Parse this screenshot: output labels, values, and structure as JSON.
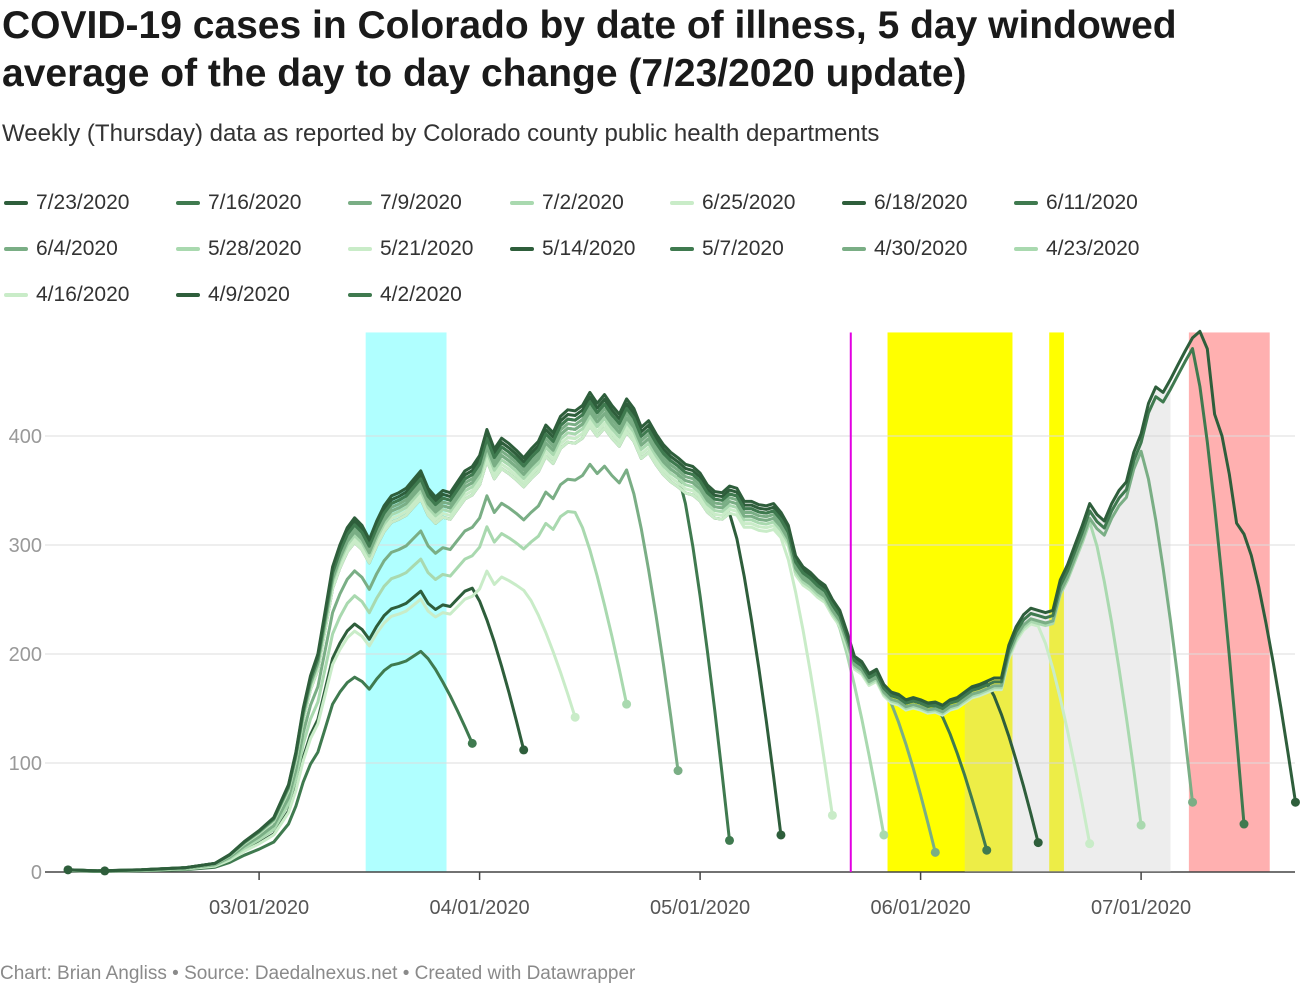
{
  "title": "COVID-19 cases in Colorado by date of illness, 5 day windowed average of the day to day change (7/23/2020 update)",
  "subtitle": "Weekly (Thursday) data as reported by Colorado county public health departments",
  "footer": "Chart: Brian Angliss • Source: Daedalnexus.net • Created with Datawrapper",
  "colors": {
    "palette": [
      "#2e5e3b",
      "#3f7a4f",
      "#7aae85",
      "#a9d9af",
      "#c9ecc8"
    ],
    "gridline": "#dddddd",
    "axis_text": "#999999",
    "cyan_band": "#b0ffff",
    "yellow_band": "#ffff00",
    "red_band": "#ffb0b0",
    "magenta_line": "#e200e2",
    "gray_shade": "#cccccc"
  },
  "chart_data": {
    "type": "line",
    "title": "COVID-19 cases in Colorado by date of illness, 5 day windowed average of the day to day change (7/23/2020 update)",
    "xlabel": "",
    "ylabel": "",
    "x_range": [
      "02/04/2020",
      "07/23/2020"
    ],
    "ylim": [
      0,
      500
    ],
    "yticks": [
      0,
      100,
      200,
      300,
      400
    ],
    "ytick_labels": [
      "0",
      "100",
      "200",
      "300",
      "400"
    ],
    "xticks": [
      {
        "day": 26,
        "label": "03/01/2020"
      },
      {
        "day": 56,
        "label": "04/01/2020"
      },
      {
        "day": 86,
        "label": "05/01/2020"
      },
      {
        "day": 116,
        "label": "06/01/2020"
      },
      {
        "day": 146,
        "label": "07/01/2020"
      }
    ],
    "x_unit_note": "x values are days since 02/04/2020",
    "bands": [
      {
        "name": "cyan",
        "from": 40.5,
        "to": 51.5
      },
      {
        "name": "yellow",
        "from": 111.5,
        "to": 128.5
      },
      {
        "name": "yellow",
        "from": 133.5,
        "to": 135.5
      },
      {
        "name": "red",
        "from": 152.5,
        "to": 163.5
      }
    ],
    "vlines": [
      {
        "name": "magenta",
        "at": 106.5
      }
    ],
    "shaded_gaps": [
      {
        "from": 128,
        "to": 129,
        "upper_series": "7/23/2020"
      },
      {
        "from": 135,
        "to": 136,
        "upper_series": "7/23/2020"
      },
      {
        "from": 142,
        "to": 143,
        "upper_series": "7/23/2020"
      },
      {
        "from": 149,
        "to": 150,
        "upper_series": "7/23/2020"
      }
    ],
    "base_curve": [
      [
        0,
        2
      ],
      [
        4,
        1
      ],
      [
        10,
        2
      ],
      [
        16,
        4
      ],
      [
        20,
        8
      ],
      [
        22,
        16
      ],
      [
        24,
        28
      ],
      [
        26,
        38
      ],
      [
        28,
        50
      ],
      [
        30,
        80
      ],
      [
        31,
        110
      ],
      [
        32,
        150
      ],
      [
        33,
        180
      ],
      [
        34,
        200
      ],
      [
        35,
        240
      ],
      [
        36,
        280
      ],
      [
        37,
        300
      ],
      [
        38,
        316
      ],
      [
        39,
        325
      ],
      [
        40,
        318
      ],
      [
        41,
        305
      ],
      [
        42,
        322
      ],
      [
        43,
        336
      ],
      [
        44,
        345
      ],
      [
        45,
        348
      ],
      [
        46,
        352
      ],
      [
        47,
        360
      ],
      [
        48,
        368
      ],
      [
        49,
        352
      ],
      [
        50,
        344
      ],
      [
        51,
        350
      ],
      [
        52,
        348
      ],
      [
        53,
        358
      ],
      [
        54,
        368
      ],
      [
        55,
        372
      ],
      [
        56,
        382
      ],
      [
        57,
        406
      ],
      [
        58,
        388
      ],
      [
        59,
        398
      ],
      [
        60,
        393
      ],
      [
        61,
        387
      ],
      [
        62,
        380
      ],
      [
        63,
        388
      ],
      [
        64,
        395
      ],
      [
        65,
        410
      ],
      [
        66,
        403
      ],
      [
        67,
        418
      ],
      [
        68,
        424
      ],
      [
        69,
        423
      ],
      [
        70,
        428
      ],
      [
        71,
        440
      ],
      [
        72,
        430
      ],
      [
        73,
        438
      ],
      [
        74,
        428
      ],
      [
        75,
        420
      ],
      [
        76,
        434
      ],
      [
        77,
        425
      ],
      [
        78,
        408
      ],
      [
        79,
        414
      ],
      [
        80,
        402
      ],
      [
        81,
        392
      ],
      [
        82,
        385
      ],
      [
        83,
        380
      ],
      [
        84,
        374
      ],
      [
        85,
        372
      ],
      [
        86,
        366
      ],
      [
        87,
        355
      ],
      [
        88,
        349
      ],
      [
        89,
        348
      ],
      [
        90,
        354
      ],
      [
        91,
        352
      ],
      [
        92,
        340
      ],
      [
        93,
        340
      ],
      [
        94,
        337
      ],
      [
        95,
        336
      ],
      [
        96,
        338
      ],
      [
        97,
        330
      ],
      [
        98,
        318
      ],
      [
        99,
        290
      ],
      [
        100,
        280
      ],
      [
        101,
        275
      ],
      [
        102,
        268
      ],
      [
        103,
        263
      ],
      [
        104,
        250
      ],
      [
        105,
        240
      ],
      [
        106,
        220
      ],
      [
        107,
        198
      ],
      [
        108,
        193
      ],
      [
        109,
        182
      ],
      [
        110,
        186
      ],
      [
        111,
        172
      ],
      [
        112,
        165
      ],
      [
        113,
        163
      ],
      [
        114,
        158
      ],
      [
        115,
        160
      ],
      [
        116,
        158
      ],
      [
        117,
        155
      ],
      [
        118,
        156
      ],
      [
        119,
        153
      ],
      [
        120,
        158
      ],
      [
        121,
        160
      ],
      [
        122,
        165
      ],
      [
        123,
        170
      ],
      [
        124,
        172
      ],
      [
        125,
        175
      ],
      [
        126,
        178
      ],
      [
        127,
        178
      ],
      [
        128,
        208
      ],
      [
        129,
        225
      ],
      [
        130,
        236
      ],
      [
        131,
        242
      ],
      [
        132,
        240
      ],
      [
        133,
        238
      ],
      [
        134,
        240
      ],
      [
        135,
        268
      ],
      [
        136,
        282
      ],
      [
        137,
        300
      ],
      [
        138,
        318
      ],
      [
        139,
        338
      ],
      [
        140,
        328
      ],
      [
        141,
        322
      ],
      [
        142,
        338
      ],
      [
        143,
        350
      ],
      [
        144,
        358
      ],
      [
        145,
        385
      ],
      [
        146,
        402
      ],
      [
        147,
        430
      ],
      [
        148,
        445
      ],
      [
        149,
        440
      ],
      [
        150,
        452
      ],
      [
        151,
        465
      ],
      [
        152,
        478
      ],
      [
        153,
        490
      ],
      [
        154,
        496
      ],
      [
        155,
        480
      ],
      [
        156,
        420
      ],
      [
        157,
        400
      ],
      [
        158,
        365
      ],
      [
        159,
        320
      ],
      [
        160,
        310
      ],
      [
        161,
        290
      ],
      [
        162,
        260
      ],
      [
        163,
        220
      ],
      [
        164,
        180
      ],
      [
        165,
        140
      ],
      [
        166,
        100
      ],
      [
        167,
        64
      ]
    ],
    "series": [
      {
        "name": "7/23/2020",
        "end_day": 167,
        "end_value": 64,
        "scale": 1.0,
        "color": "#2e5e3b"
      },
      {
        "name": "7/16/2020",
        "end_day": 160,
        "end_value": 44,
        "scale": 0.98,
        "color": "#3f7a4f"
      },
      {
        "name": "7/9/2020",
        "end_day": 153,
        "end_value": 64,
        "scale": 0.96,
        "color": "#7aae85"
      },
      {
        "name": "7/2/2020",
        "end_day": 146,
        "end_value": 43,
        "scale": 0.95,
        "color": "#a9d9af"
      },
      {
        "name": "6/25/2020",
        "end_day": 139,
        "end_value": 26,
        "scale": 0.94,
        "color": "#c9ecc8"
      },
      {
        "name": "6/18/2020",
        "end_day": 132,
        "end_value": 27,
        "scale": 0.99,
        "color": "#2e5e3b"
      },
      {
        "name": "6/11/2020",
        "end_day": 125,
        "end_value": 20,
        "scale": 0.98,
        "color": "#3f7a4f"
      },
      {
        "name": "6/4/2020",
        "end_day": 118,
        "end_value": 18,
        "scale": 0.97,
        "color": "#7aae85"
      },
      {
        "name": "5/28/2020",
        "end_day": 111,
        "end_value": 34,
        "scale": 0.96,
        "color": "#a9d9af"
      },
      {
        "name": "5/21/2020",
        "end_day": 104,
        "end_value": 52,
        "scale": 0.93,
        "color": "#c9ecc8"
      },
      {
        "name": "5/14/2020",
        "end_day": 97,
        "end_value": 34,
        "scale": 0.93,
        "color": "#2e5e3b"
      },
      {
        "name": "5/7/2020",
        "end_day": 90,
        "end_value": 29,
        "scale": 0.96,
        "color": "#3f7a4f"
      },
      {
        "name": "4/30/2020",
        "end_day": 83,
        "end_value": 93,
        "scale": 0.85,
        "color": "#7aae85"
      },
      {
        "name": "4/23/2020",
        "end_day": 76,
        "end_value": 154,
        "scale": 0.78,
        "color": "#a9d9af"
      },
      {
        "name": "4/16/2020",
        "end_day": 69,
        "end_value": 142,
        "scale": 0.68,
        "color": "#c9ecc8"
      },
      {
        "name": "4/9/2020",
        "end_day": 62,
        "end_value": 112,
        "scale": 0.7,
        "color": "#2e5e3b"
      },
      {
        "name": "4/2/2020",
        "end_day": 55,
        "end_value": 118,
        "scale": 0.55,
        "color": "#3f7a4f"
      }
    ],
    "legend": [
      "7/23/2020",
      "7/16/2020",
      "7/9/2020",
      "7/2/2020",
      "6/25/2020",
      "6/18/2020",
      "6/11/2020",
      "6/4/2020",
      "5/28/2020",
      "5/21/2020",
      "5/14/2020",
      "5/7/2020",
      "4/30/2020",
      "4/23/2020",
      "4/16/2020",
      "4/9/2020",
      "4/2/2020"
    ],
    "grid": true,
    "legend_position": "top"
  }
}
